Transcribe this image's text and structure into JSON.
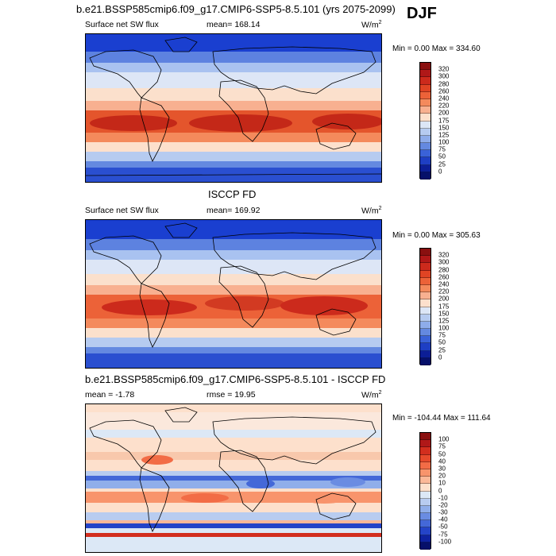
{
  "season": "DJF",
  "panels": [
    {
      "id": "model",
      "title": "b.e21.BSSP585cmip6.f09_g17.CMIP6-SSP5-8.5.101 (yrs 2075-2099)",
      "left_label": "Surface net SW flux",
      "center_label": "mean= 168.14",
      "units": "W/m",
      "units_exp": "2",
      "minmax": "Min =   0.00 Max = 334.60",
      "colorbar_labels": [
        "320",
        "300",
        "280",
        "260",
        "240",
        "220",
        "200",
        "175",
        "150",
        "125",
        "100",
        "75",
        "50",
        "25",
        "0"
      ],
      "colorbar_colors": [
        "#8a1010",
        "#b01818",
        "#cc2a1c",
        "#e04424",
        "#ec6238",
        "#f48a5c",
        "#f8b090",
        "#fde0cc",
        "#dce6f6",
        "#b6cbf0",
        "#8eacea",
        "#6489e0",
        "#3a62d8",
        "#1e3fc4",
        "#0c1e96",
        "#06106a"
      ]
    },
    {
      "id": "obs",
      "title": "ISCCP FD",
      "left_label": "Surface net SW flux",
      "center_label": "mean= 169.92",
      "units": "W/m",
      "units_exp": "2",
      "minmax": "Min =   0.00 Max = 305.63",
      "colorbar_labels": [
        "320",
        "300",
        "280",
        "260",
        "240",
        "220",
        "200",
        "175",
        "150",
        "125",
        "100",
        "75",
        "50",
        "25",
        "0"
      ],
      "colorbar_colors": [
        "#8a1010",
        "#b01818",
        "#cc2a1c",
        "#e04424",
        "#ec6238",
        "#f48a5c",
        "#f8b090",
        "#fde0cc",
        "#dce6f6",
        "#b6cbf0",
        "#8eacea",
        "#6489e0",
        "#3a62d8",
        "#1e3fc4",
        "#0c1e96",
        "#06106a"
      ]
    },
    {
      "id": "diff",
      "title": "b.e21.BSSP585cmip6.f09_g17.CMIP6-SSP5-8.5.101 - ISCCP FD",
      "left_label": "mean =  -1.78",
      "center_label": "rmse =  19.95",
      "units": "W/m",
      "units_exp": "2",
      "minmax": "Min = -104.44 Max = 111.64",
      "colorbar_labels": [
        "100",
        "75",
        "50",
        "40",
        "30",
        "20",
        "10",
        "0",
        "-10",
        "-20",
        "-30",
        "-40",
        "-50",
        "-75",
        "-100"
      ],
      "colorbar_colors": [
        "#8a1010",
        "#b01818",
        "#d22e1e",
        "#e64a2c",
        "#f26c46",
        "#f8946c",
        "#fbb898",
        "#fde0cc",
        "#dce8f6",
        "#b8ccf0",
        "#90aeea",
        "#6a8ce2",
        "#4468d8",
        "#2444c8",
        "#0e22a0",
        "#06106a"
      ]
    }
  ]
}
